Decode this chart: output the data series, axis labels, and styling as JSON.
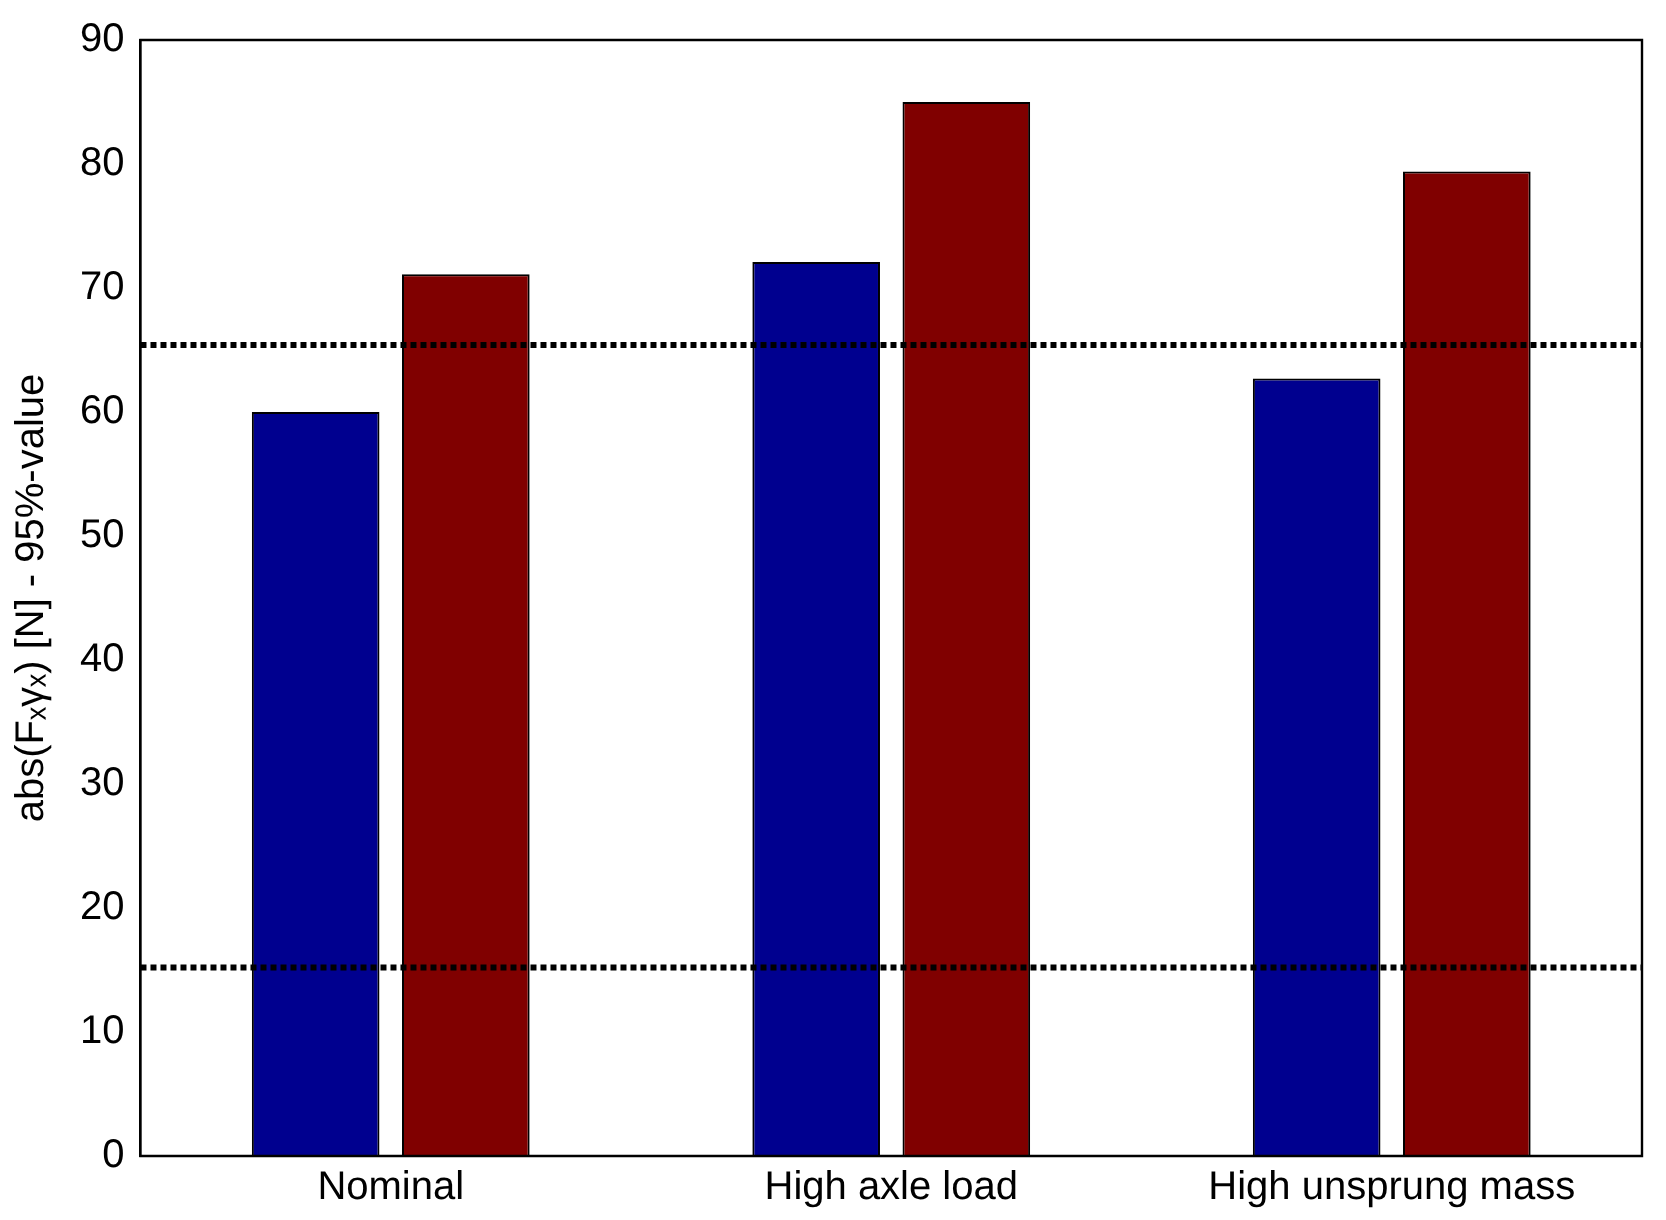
{
  "chart_data": {
    "type": "bar",
    "ylabel": "abs(Fₓγₓ) [N] - 95%-value",
    "categories": [
      "Nominal",
      "High axle load",
      "High unsprung mass"
    ],
    "series": [
      {
        "color": "#00008f",
        "values": [
          60.0,
          72.1,
          62.7
        ]
      },
      {
        "color": "#800000",
        "values": [
          71.1,
          85.0,
          79.4
        ]
      }
    ],
    "ylim": [
      0,
      90
    ],
    "yticks": [
      0,
      10,
      20,
      30,
      40,
      50,
      60,
      70,
      80,
      90
    ],
    "grid": false,
    "legend": false,
    "ref_lines": [
      {
        "axis": "y",
        "value": 65.4,
        "color": "#000000",
        "line_style": "dotted"
      },
      {
        "axis": "y",
        "value": 15.2,
        "color": "#000000",
        "line_style": "dotted"
      }
    ]
  }
}
